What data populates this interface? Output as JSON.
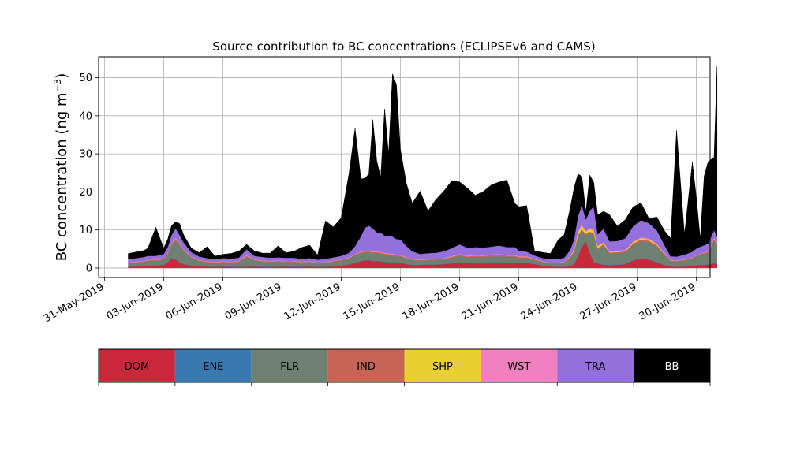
{
  "chart_data": {
    "type": "area",
    "stacked": true,
    "title": "Source contribution to BC concentrations (ECLIPSEv6 and CAMS)",
    "ylabel_main": "BC concentration (ng m",
    "ylabel_sup": "−3",
    "ylabel_close": ")",
    "xlabel": "",
    "grid": true,
    "xlim": [
      -0.3,
      30.7
    ],
    "ylim": [
      -2.5,
      55.5
    ],
    "yticks": [
      0,
      10,
      20,
      30,
      40,
      50
    ],
    "xticks": [
      {
        "day": 0,
        "label": "31-May-2019"
      },
      {
        "day": 3,
        "label": "03-Jun-2019"
      },
      {
        "day": 6,
        "label": "06-Jun-2019"
      },
      {
        "day": 9,
        "label": "09-Jun-2019"
      },
      {
        "day": 12,
        "label": "12-Jun-2019"
      },
      {
        "day": 15,
        "label": "15-Jun-2019"
      },
      {
        "day": 18,
        "label": "18-Jun-2019"
      },
      {
        "day": 21,
        "label": "21-Jun-2019"
      },
      {
        "day": 24,
        "label": "24-Jun-2019"
      },
      {
        "day": 27,
        "label": "27-Jun-2019"
      },
      {
        "day": 30,
        "label": "30-Jun-2019"
      }
    ],
    "x_days": [
      1.2,
      1.6,
      2.0,
      2.2,
      2.6,
      3.0,
      3.2,
      3.4,
      3.6,
      3.8,
      4.0,
      4.4,
      4.8,
      5.2,
      5.6,
      6.0,
      6.4,
      6.8,
      7.2,
      7.6,
      8.0,
      8.4,
      8.8,
      9.2,
      9.6,
      10.0,
      10.4,
      10.8,
      11.2,
      11.6,
      12.0,
      12.4,
      12.7,
      13.0,
      13.2,
      13.4,
      13.6,
      13.8,
      14.0,
      14.2,
      14.4,
      14.6,
      14.8,
      15.0,
      15.3,
      15.6,
      16.0,
      16.4,
      16.8,
      17.2,
      17.6,
      18.0,
      18.4,
      18.8,
      19.2,
      19.6,
      20.0,
      20.4,
      20.8,
      21.0,
      21.4,
      21.8,
      22.2,
      22.6,
      23.0,
      23.3,
      23.6,
      23.8,
      24.0,
      24.2,
      24.4,
      24.6,
      24.8,
      25.0,
      25.3,
      25.6,
      26.0,
      26.4,
      26.8,
      27.2,
      27.6,
      28.0,
      28.4,
      28.7,
      29.0,
      29.4,
      29.8,
      30.0,
      30.2,
      30.4,
      30.6,
      30.9,
      31.05
    ],
    "series": [
      {
        "name": "DOM",
        "color": "#c8283a",
        "values": [
          0.3,
          0.4,
          0.5,
          0.6,
          0.6,
          0.8,
          1.5,
          2.5,
          2.2,
          1.5,
          1.0,
          0.6,
          0.4,
          0.4,
          0.3,
          0.4,
          0.3,
          0.3,
          0.3,
          0.4,
          0.3,
          0.3,
          0.3,
          0.4,
          0.3,
          0.3,
          0.4,
          0.3,
          0.3,
          0.4,
          0.6,
          0.9,
          1.4,
          1.8,
          2.0,
          2.0,
          1.8,
          1.8,
          1.7,
          1.6,
          1.5,
          1.5,
          1.4,
          1.4,
          1.0,
          0.8,
          0.8,
          0.9,
          0.9,
          1.0,
          1.2,
          1.5,
          1.3,
          1.4,
          1.3,
          1.4,
          1.5,
          1.4,
          1.4,
          1.3,
          1.3,
          1.0,
          0.6,
          0.4,
          0.3,
          0.3,
          0.5,
          1.0,
          3.0,
          5.5,
          7.0,
          4.0,
          1.5,
          1.2,
          0.8,
          0.7,
          0.8,
          1.0,
          2.0,
          2.5,
          2.2,
          1.5,
          0.7,
          0.4,
          0.3,
          0.4,
          0.6,
          0.7,
          0.8,
          0.8,
          0.9,
          1.2,
          1.0
        ]
      },
      {
        "name": "ENE",
        "color": "#3a78b0",
        "values": [
          0.1,
          0.1,
          0.1,
          0.1,
          0.1,
          0.1,
          0.1,
          0.1,
          0.1,
          0.1,
          0.1,
          0.1,
          0.1,
          0.1,
          0.1,
          0.1,
          0.1,
          0.1,
          0.1,
          0.1,
          0.1,
          0.1,
          0.1,
          0.1,
          0.1,
          0.1,
          0.1,
          0.1,
          0.1,
          0.1,
          0.1,
          0.1,
          0.1,
          0.1,
          0.1,
          0.1,
          0.1,
          0.1,
          0.1,
          0.1,
          0.1,
          0.1,
          0.1,
          0.1,
          0.1,
          0.1,
          0.1,
          0.1,
          0.1,
          0.1,
          0.1,
          0.1,
          0.1,
          0.1,
          0.1,
          0.1,
          0.1,
          0.1,
          0.1,
          0.1,
          0.1,
          0.1,
          0.1,
          0.1,
          0.1,
          0.1,
          0.1,
          0.1,
          0.1,
          0.1,
          0.1,
          0.1,
          0.1,
          0.1,
          0.1,
          0.1,
          0.1,
          0.1,
          0.1,
          0.1,
          0.1,
          0.1,
          0.1,
          0.1,
          0.1,
          0.1,
          0.1,
          0.1,
          0.1,
          0.1,
          0.1,
          0.1,
          0.1
        ]
      },
      {
        "name": "FLR",
        "color": "#6e8070",
        "values": [
          0.8,
          0.9,
          1.0,
          1.2,
          1.2,
          1.3,
          2.0,
          3.5,
          5.0,
          4.5,
          3.5,
          2.0,
          1.3,
          1.0,
          0.9,
          1.0,
          1.0,
          1.2,
          2.5,
          1.5,
          1.3,
          1.2,
          1.3,
          1.1,
          1.2,
          1.0,
          1.0,
          0.8,
          0.9,
          1.2,
          1.3,
          1.5,
          1.8,
          2.0,
          2.0,
          2.0,
          2.0,
          2.0,
          2.0,
          1.8,
          1.8,
          1.7,
          1.6,
          1.5,
          1.3,
          1.2,
          1.0,
          1.1,
          1.1,
          1.2,
          1.4,
          1.6,
          1.4,
          1.5,
          1.5,
          1.6,
          1.6,
          1.5,
          1.5,
          1.2,
          1.2,
          1.0,
          0.8,
          0.7,
          0.8,
          1.0,
          2.0,
          3.0,
          5.0,
          4.0,
          1.5,
          5.0,
          7.0,
          3.5,
          5.0,
          3.0,
          3.0,
          3.0,
          4.0,
          4.5,
          4.5,
          4.0,
          2.5,
          1.3,
          1.3,
          1.5,
          1.8,
          2.2,
          2.5,
          2.8,
          3.0,
          6.0,
          5.0
        ]
      },
      {
        "name": "IND",
        "color": "#c86455",
        "values": [
          0.2,
          0.2,
          0.2,
          0.2,
          0.2,
          0.2,
          0.3,
          0.4,
          0.4,
          0.4,
          0.3,
          0.2,
          0.2,
          0.2,
          0.2,
          0.2,
          0.2,
          0.2,
          0.3,
          0.2,
          0.2,
          0.2,
          0.2,
          0.2,
          0.2,
          0.2,
          0.2,
          0.2,
          0.2,
          0.2,
          0.2,
          0.2,
          0.3,
          0.3,
          0.3,
          0.3,
          0.3,
          0.3,
          0.3,
          0.3,
          0.3,
          0.3,
          0.3,
          0.3,
          0.3,
          0.2,
          0.2,
          0.2,
          0.2,
          0.2,
          0.3,
          0.3,
          0.3,
          0.3,
          0.3,
          0.3,
          0.3,
          0.3,
          0.3,
          0.3,
          0.3,
          0.2,
          0.2,
          0.2,
          0.2,
          0.2,
          0.3,
          0.4,
          0.5,
          0.5,
          0.4,
          0.5,
          0.5,
          0.4,
          0.4,
          0.3,
          0.3,
          0.3,
          0.4,
          0.4,
          0.4,
          0.4,
          0.3,
          0.2,
          0.2,
          0.2,
          0.2,
          0.3,
          0.3,
          0.3,
          0.3,
          0.4,
          0.3
        ]
      },
      {
        "name": "SHP",
        "color": "#e8d030",
        "values": [
          0.0,
          0.0,
          0.0,
          0.0,
          0.0,
          0.0,
          0.0,
          0.0,
          0.0,
          0.0,
          0.0,
          0.0,
          0.0,
          0.0,
          0.0,
          0.0,
          0.0,
          0.0,
          0.0,
          0.0,
          0.0,
          0.0,
          0.0,
          0.0,
          0.0,
          0.0,
          0.0,
          0.0,
          0.0,
          0.0,
          0.0,
          0.0,
          0.0,
          0.0,
          0.0,
          0.0,
          0.0,
          0.0,
          0.0,
          0.0,
          0.0,
          0.0,
          0.0,
          0.0,
          0.0,
          0.0,
          0.0,
          0.0,
          0.0,
          0.0,
          0.0,
          0.0,
          0.0,
          0.0,
          0.0,
          0.0,
          0.0,
          0.0,
          0.0,
          0.0,
          0.0,
          0.0,
          0.0,
          0.0,
          0.0,
          0.0,
          0.1,
          0.3,
          0.8,
          1.0,
          0.6,
          0.6,
          0.8,
          0.5,
          0.3,
          0.2,
          0.2,
          0.2,
          0.3,
          0.3,
          0.3,
          0.2,
          0.1,
          0.0,
          0.0,
          0.0,
          0.0,
          0.0,
          0.0,
          0.0,
          0.0,
          0.1,
          0.1
        ]
      },
      {
        "name": "WST",
        "color": "#f080c0",
        "values": [
          0.1,
          0.1,
          0.1,
          0.1,
          0.1,
          0.1,
          0.1,
          0.2,
          0.2,
          0.2,
          0.1,
          0.1,
          0.1,
          0.1,
          0.1,
          0.1,
          0.1,
          0.1,
          0.2,
          0.1,
          0.1,
          0.1,
          0.1,
          0.1,
          0.1,
          0.1,
          0.1,
          0.1,
          0.1,
          0.1,
          0.1,
          0.1,
          0.1,
          0.2,
          0.2,
          0.2,
          0.2,
          0.2,
          0.2,
          0.2,
          0.2,
          0.2,
          0.2,
          0.2,
          0.1,
          0.1,
          0.1,
          0.1,
          0.1,
          0.1,
          0.2,
          0.2,
          0.2,
          0.2,
          0.2,
          0.2,
          0.2,
          0.2,
          0.2,
          0.2,
          0.2,
          0.1,
          0.1,
          0.1,
          0.1,
          0.1,
          0.2,
          0.2,
          0.3,
          0.3,
          0.2,
          0.3,
          0.3,
          0.2,
          0.2,
          0.2,
          0.2,
          0.2,
          0.2,
          0.3,
          0.3,
          0.2,
          0.2,
          0.1,
          0.1,
          0.1,
          0.1,
          0.1,
          0.1,
          0.1,
          0.1,
          0.2,
          0.2
        ]
      },
      {
        "name": "TRA",
        "color": "#9370db",
        "values": [
          0.8,
          0.9,
          1.0,
          1.0,
          1.0,
          1.2,
          1.5,
          2.0,
          2.5,
          2.0,
          1.8,
          1.2,
          0.9,
          0.8,
          0.7,
          0.8,
          0.8,
          0.8,
          1.5,
          0.9,
          0.9,
          0.8,
          0.8,
          0.8,
          0.8,
          0.7,
          0.8,
          0.7,
          0.8,
          0.8,
          0.9,
          1.2,
          2.0,
          4.0,
          6.0,
          6.5,
          6.0,
          5.0,
          5.0,
          4.5,
          4.5,
          4.5,
          4.0,
          4.0,
          3.0,
          2.0,
          1.5,
          1.5,
          1.6,
          1.8,
          2.0,
          2.5,
          2.0,
          2.0,
          2.0,
          2.0,
          2.2,
          2.0,
          2.0,
          1.5,
          1.2,
          0.9,
          0.8,
          0.8,
          0.9,
          1.0,
          1.5,
          2.5,
          4.0,
          5.0,
          3.0,
          4.5,
          6.0,
          3.0,
          3.5,
          2.5,
          2.5,
          3.0,
          4.0,
          4.5,
          4.0,
          3.5,
          2.0,
          1.0,
          1.0,
          1.2,
          1.5,
          1.7,
          1.8,
          1.9,
          2.0,
          2.0,
          1.5
        ]
      },
      {
        "name": "BB",
        "color": "#000000",
        "values": [
          1.5,
          1.6,
          1.7,
          2.0,
          7.5,
          1.5,
          2.0,
          2.5,
          1.7,
          3.0,
          2.0,
          1.0,
          1.0,
          3.0,
          0.8,
          1.0,
          1.3,
          1.7,
          1.3,
          1.3,
          1.0,
          1.2,
          3.0,
          1.3,
          1.7,
          3.0,
          3.4,
          1.2,
          10.0,
          8.0,
          10.0,
          21.0,
          31.0,
          15.0,
          13.0,
          13.6,
          28.6,
          18.8,
          14.5,
          33.3,
          21.5,
          42.7,
          40.5,
          23.7,
          16.5,
          12.6,
          16.5,
          11.1,
          14.0,
          15.8,
          17.7,
          16.4,
          15.7,
          13.6,
          14.7,
          16.2,
          16.7,
          17.6,
          11.5,
          11.5,
          12.1,
          1.2,
          1.5,
          1.5,
          5.0,
          6.0,
          10.8,
          13.5,
          11.0,
          7.7,
          1.9,
          9.4,
          6.3,
          5.0,
          4.6,
          7.0,
          3.9,
          4.9,
          5.1,
          4.5,
          1.2,
          3.5,
          3.8,
          4.7,
          33.2,
          5.3,
          23.5,
          13.6,
          2.0,
          18.2,
          21.5,
          19.1,
          44.8
        ]
      }
    ],
    "legend_title": [
      "DOM",
      "ENE",
      "FLR",
      "IND",
      "SHP",
      "WST",
      "TRA",
      "BB"
    ]
  }
}
